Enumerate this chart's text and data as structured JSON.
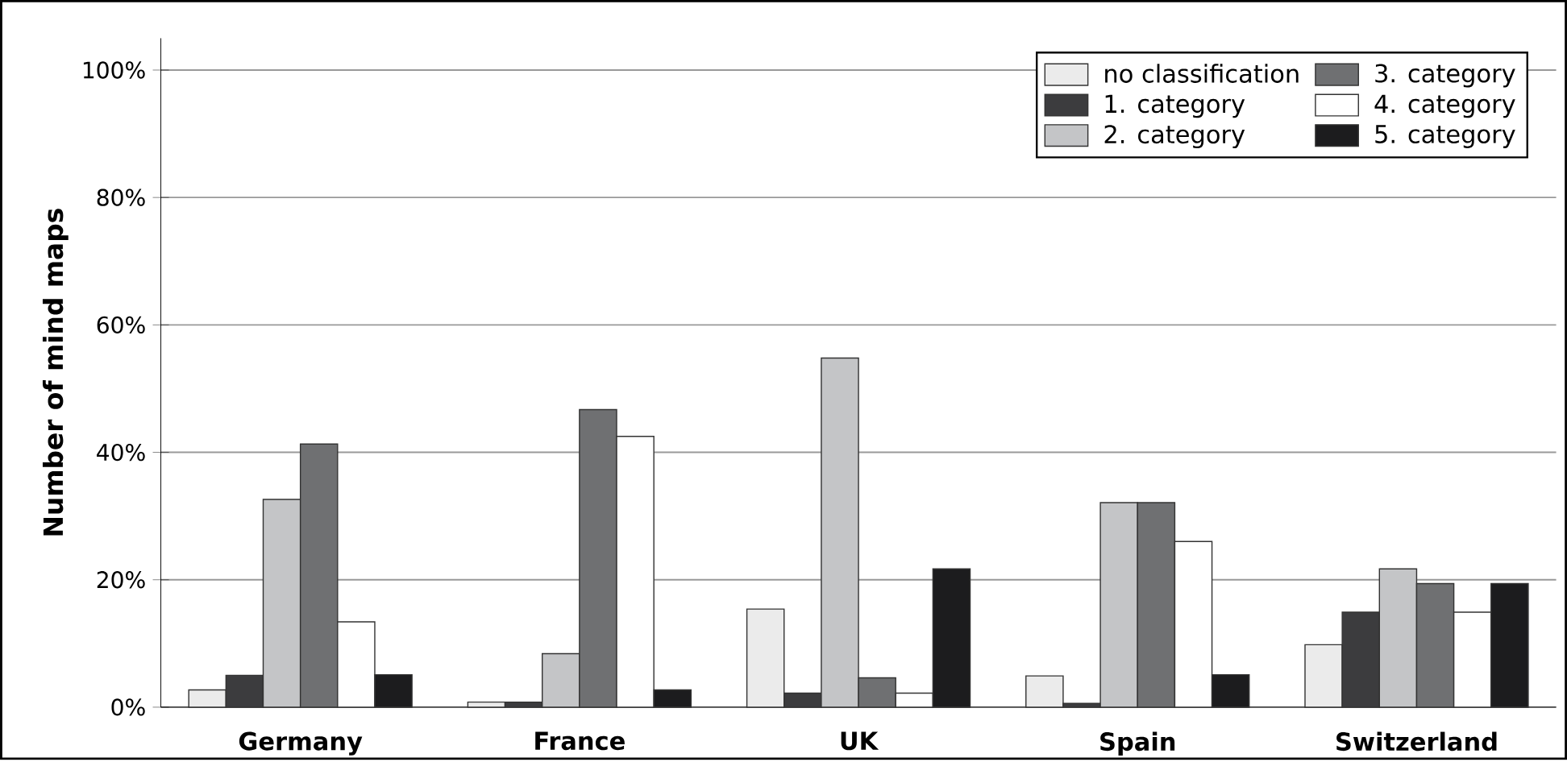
{
  "chart_data": {
    "type": "bar",
    "ylabel": "Number of mind maps",
    "categories": [
      "Germany",
      "France",
      "UK",
      "Spain",
      "Switzerland"
    ],
    "series": [
      {
        "name": "no classification",
        "color": "#ebebeb",
        "values": [
          2.7,
          0.8,
          15.4,
          4.9,
          9.8
        ]
      },
      {
        "name": "1. category",
        "color": "#3c3c3e",
        "values": [
          5.0,
          0.8,
          2.2,
          0.6,
          14.9
        ]
      },
      {
        "name": "2. category",
        "color": "#c4c5c7",
        "values": [
          32.6,
          8.4,
          54.8,
          32.1,
          21.7
        ]
      },
      {
        "name": "3. category",
        "color": "#6f7072",
        "values": [
          41.3,
          46.7,
          4.6,
          32.1,
          19.4
        ]
      },
      {
        "name": "4. category",
        "color": "#ffffff",
        "values": [
          13.4,
          42.5,
          2.2,
          26.0,
          14.9
        ]
      },
      {
        "name": "5. category",
        "color": "#1c1c1e",
        "values": [
          5.1,
          2.7,
          21.7,
          5.1,
          19.4
        ]
      }
    ],
    "ylim": [
      0,
      105
    ],
    "yticks": [
      {
        "value": 0,
        "label": "0%"
      },
      {
        "value": 20,
        "label": "20%"
      },
      {
        "value": 40,
        "label": "40%"
      },
      {
        "value": 60,
        "label": "60%"
      },
      {
        "value": 80,
        "label": "80%"
      },
      {
        "value": 100,
        "label": "100%"
      }
    ],
    "grid": "y",
    "legend": "top right"
  }
}
